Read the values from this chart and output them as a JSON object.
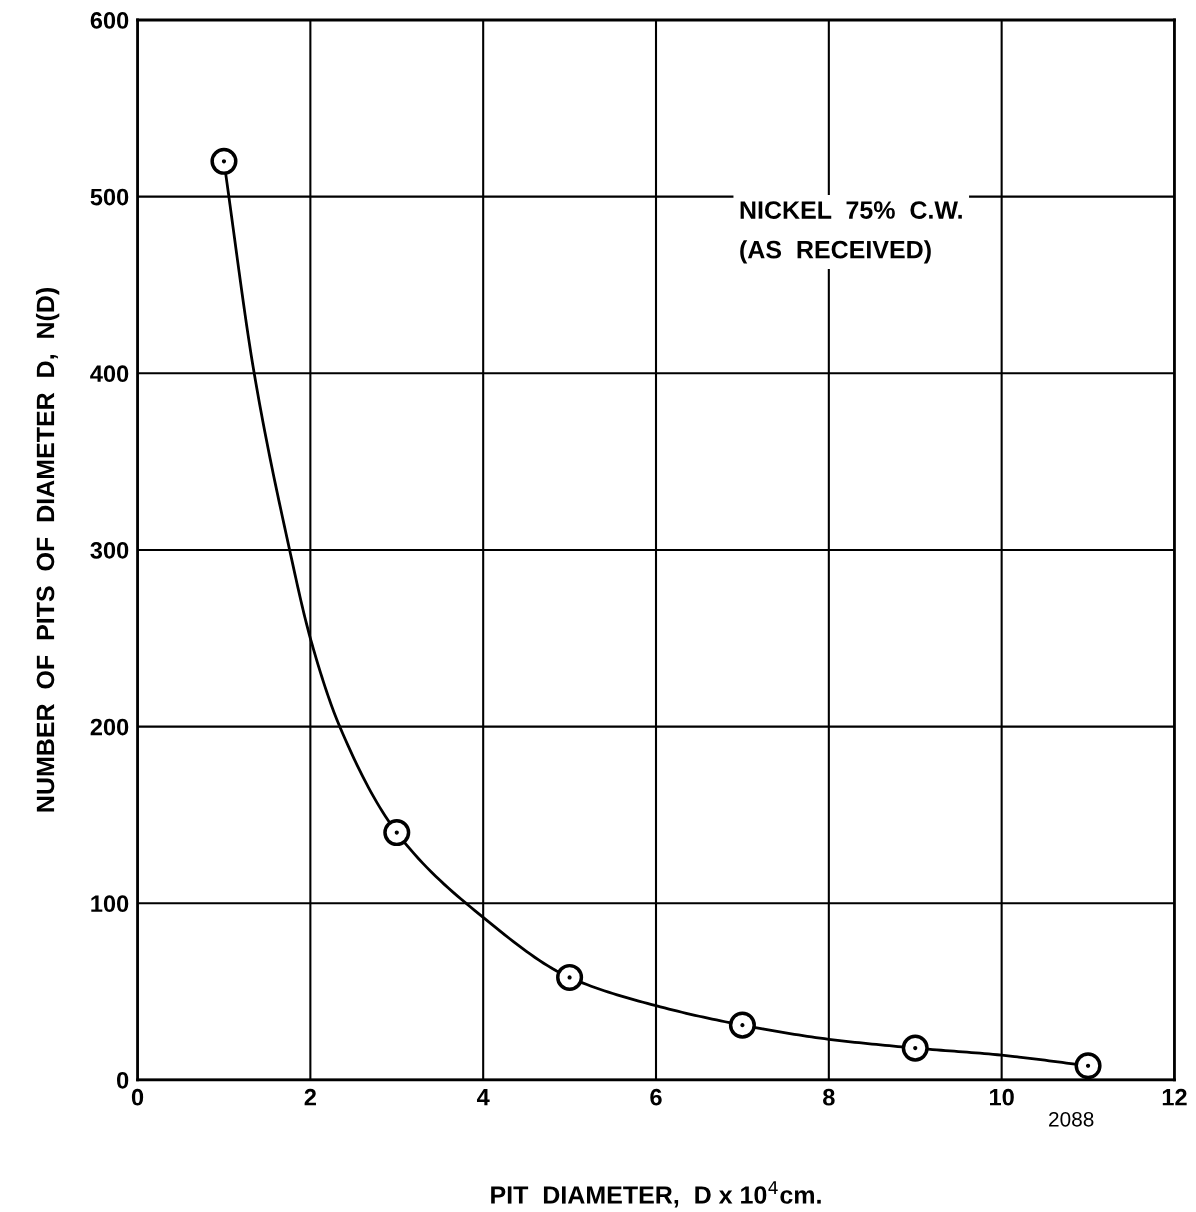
{
  "chart_data": {
    "type": "line",
    "xlabel": "PIT  DIAMETER,  D x 10$^{4}$cm.",
    "ylabel": "NUMBER  OF  PITS  OF  DIAMETER  D,  N(D)",
    "annotations": [
      "NICKEL  75%  C.W.\n(AS  RECEIVED)",
      "2088"
    ],
    "series": [
      {
        "type": "scatter",
        "marker": "circle",
        "color": "#000000",
        "x": [
          1,
          3,
          5,
          7,
          9,
          11
        ],
        "values": [
          520,
          140,
          58,
          31,
          18,
          8
        ]
      },
      {
        "marker": "none",
        "line_style": "solid",
        "color": "#000000",
        "x": [
          1,
          1.35,
          1.76,
          2.0,
          2.34,
          3,
          4,
          5,
          6,
          7,
          8,
          9,
          10,
          11
        ],
        "values": [
          520,
          400,
          300,
          250,
          200,
          140,
          92,
          58,
          42,
          31,
          23,
          18,
          14,
          8
        ]
      }
    ],
    "xlim": [
      0,
      12
    ],
    "xticks": [
      0,
      2,
      4,
      6,
      8,
      10,
      12
    ],
    "ylim": [
      0,
      600
    ],
    "yticks": [
      0,
      100,
      200,
      300,
      400,
      500,
      600
    ],
    "grid": true
  }
}
